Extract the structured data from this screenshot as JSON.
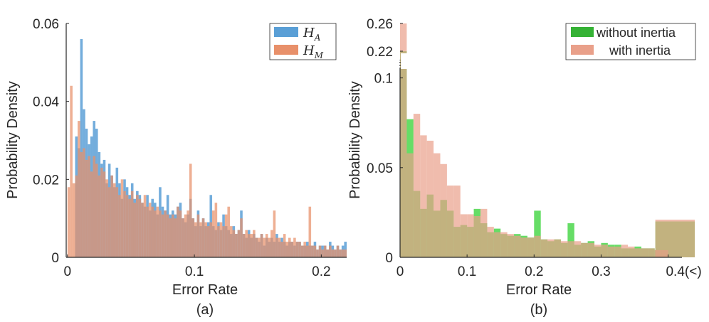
{
  "chart_data": [
    {
      "id": "a",
      "type": "histogram",
      "caption": "(a)",
      "xlabel": "Error Rate",
      "ylabel": "Probability Density",
      "xlim": [
        -0.001,
        0.22
      ],
      "ylim": [
        0,
        0.06
      ],
      "xticks": [
        0,
        0.1,
        0.2
      ],
      "xtick_labels": [
        "0",
        "0.1",
        "0.2"
      ],
      "yticks": [
        0,
        0.02,
        0.04,
        0.06
      ],
      "ytick_labels": [
        "0",
        "0.02",
        "0.04",
        "0.06"
      ],
      "legend_position": "top-right",
      "bin_start": 0,
      "bin_width": 0.002,
      "series": [
        {
          "name": "H_A",
          "symbol": "H",
          "subscript": "A",
          "color": "#5a9fd6",
          "values": [
            0.0,
            0.0,
            0.0,
            0.031,
            0.028,
            0.056,
            0.038,
            0.033,
            0.029,
            0.031,
            0.035,
            0.033,
            0.027,
            0.024,
            0.025,
            0.019,
            0.024,
            0.021,
            0.018,
            0.023,
            0.019,
            0.015,
            0.02,
            0.018,
            0.016,
            0.019,
            0.015,
            0.017,
            0.016,
            0.014,
            0.013,
            0.016,
            0.012,
            0.015,
            0.014,
            0.011,
            0.018,
            0.013,
            0.012,
            0.016,
            0.011,
            0.012,
            0.011,
            0.013,
            0.014,
            0.01,
            0.009,
            0.011,
            0.015,
            0.01,
            0.008,
            0.012,
            0.008,
            0.01,
            0.008,
            0.009,
            0.016,
            0.008,
            0.007,
            0.009,
            0.007,
            0.011,
            0.008,
            0.007,
            0.006,
            0.008,
            0.006,
            0.007,
            0.012,
            0.006,
            0.005,
            0.007,
            0.005,
            0.006,
            0.005,
            0.004,
            0.006,
            0.003,
            0.005,
            0.004,
            0.005,
            0.004,
            0.006,
            0.004,
            0.005,
            0.004,
            0.003,
            0.004,
            0.004,
            0.003,
            0.004,
            0.004,
            0.003,
            0.003,
            0.004,
            0.003,
            0.003,
            0.004,
            0.002,
            0.003,
            0.003,
            0.003,
            0.002,
            0.004,
            0.003,
            0.002,
            0.003,
            0.002,
            0.003,
            0.004
          ]
        },
        {
          "name": "H_M",
          "symbol": "H",
          "subscript": "M",
          "color": "#e8906a",
          "values": [
            0.018,
            0.044,
            0.019,
            0.021,
            0.035,
            0.027,
            0.028,
            0.025,
            0.026,
            0.022,
            0.026,
            0.024,
            0.021,
            0.023,
            0.022,
            0.02,
            0.018,
            0.021,
            0.019,
            0.018,
            0.016,
            0.02,
            0.017,
            0.016,
            0.015,
            0.017,
            0.014,
            0.016,
            0.015,
            0.014,
            0.016,
            0.013,
            0.014,
            0.013,
            0.012,
            0.013,
            0.012,
            0.011,
            0.012,
            0.011,
            0.01,
            0.011,
            0.01,
            0.013,
            0.012,
            0.01,
            0.011,
            0.012,
            0.024,
            0.01,
            0.009,
            0.011,
            0.009,
            0.01,
            0.009,
            0.008,
            0.009,
            0.012,
            0.014,
            0.008,
            0.009,
            0.008,
            0.011,
            0.013,
            0.008,
            0.007,
            0.006,
            0.007,
            0.01,
            0.006,
            0.007,
            0.006,
            0.006,
            0.007,
            0.005,
            0.005,
            0.006,
            0.005,
            0.006,
            0.005,
            0.007,
            0.012,
            0.005,
            0.005,
            0.004,
            0.006,
            0.004,
            0.005,
            0.004,
            0.005,
            0.004,
            0.004,
            0.003,
            0.004,
            0.003,
            0.013,
            0.003,
            0.003,
            0.002,
            0.003,
            0.002,
            0.003,
            0.002,
            0.003,
            0.002,
            0.002,
            0.003,
            0.002,
            0.002,
            0.002
          ]
        }
      ]
    },
    {
      "id": "b",
      "type": "histogram",
      "caption": "(b)",
      "xlabel": "Error Rate",
      "ylabel": "Probability Density",
      "xlim": [
        0,
        0.41
      ],
      "ylim_lower": [
        0,
        0.105
      ],
      "ylim_upper_break_labels": [
        0.22,
        0.26
      ],
      "xticks": [
        0,
        0.1,
        0.2,
        0.3,
        0.4
      ],
      "xtick_labels": [
        "0",
        "0.1",
        "0.2",
        "0.3",
        "0.4(<)"
      ],
      "yticks": [
        0,
        0.05,
        0.1,
        0.22,
        0.26
      ],
      "ytick_labels": [
        "0",
        "0.05",
        "0.1",
        "0.22",
        "0.26"
      ],
      "axis_break": "between 0.1 and 0.22",
      "legend_position": "top-right",
      "bin_start": 0,
      "bin_width": 0.01,
      "overflow_bin_label": "0.4(<)",
      "series": [
        {
          "name": "without inertia",
          "color": "#33d233",
          "legend_color": "#35b235",
          "values": [
            0.22,
            0.077,
            0.037,
            0.027,
            0.035,
            0.026,
            0.032,
            0.026,
            0.017,
            0.018,
            0.017,
            0.027,
            0.019,
            0.014,
            0.016,
            0.013,
            0.012,
            0.013,
            0.012,
            0.011,
            0.026,
            0.01,
            0.009,
            0.01,
            0.008,
            0.019,
            0.007,
            0.008,
            0.009,
            0.006,
            0.008,
            0.007,
            0.007,
            0.005,
            0.005,
            0.006,
            0.005,
            0.005,
            0.004,
            0.004,
            0.02
          ]
        },
        {
          "name": "with inertia",
          "color": "#e9a08a",
          "values": [
            0.26,
            0.058,
            0.08,
            0.068,
            0.065,
            0.058,
            0.052,
            0.04,
            0.04,
            0.024,
            0.024,
            0.023,
            0.027,
            0.017,
            0.014,
            0.014,
            0.013,
            0.012,
            0.011,
            0.011,
            0.012,
            0.01,
            0.01,
            0.01,
            0.009,
            0.009,
            0.009,
            0.008,
            0.008,
            0.007,
            0.007,
            0.006,
            0.006,
            0.007,
            0.006,
            0.005,
            0.005,
            0.005,
            0.004,
            0.004,
            0.021
          ]
        }
      ]
    }
  ]
}
